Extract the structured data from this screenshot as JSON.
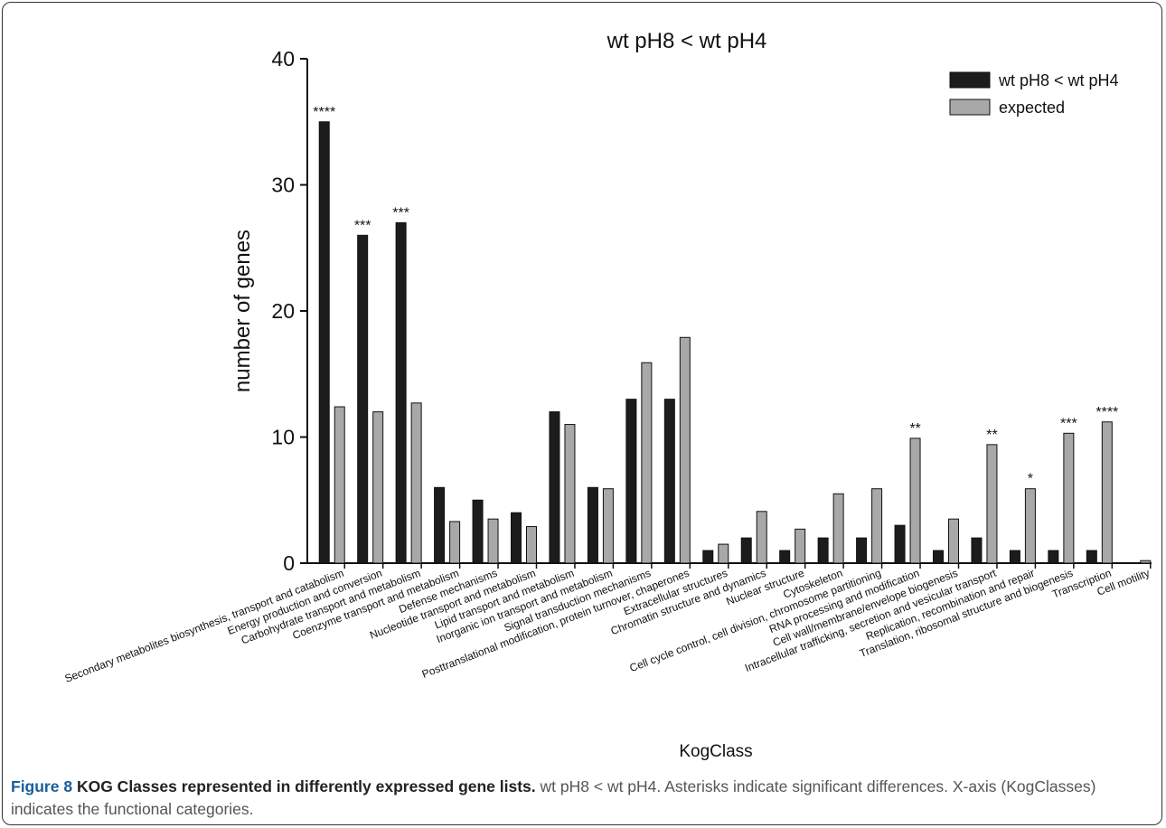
{
  "chart_data": {
    "type": "bar",
    "title": "wt pH8 < wt pH4",
    "xlabel": "KogClass",
    "ylabel": "number of genes",
    "ylim": [
      0,
      40
    ],
    "yticks": [
      "0",
      "10",
      "20",
      "30",
      "40"
    ],
    "legend_position": "top-right",
    "grid": false,
    "categories": [
      "Secondary metabolites biosynthesis, transport and catabolism",
      "Energy production and conversion",
      "Carbohydrate transport and metabolism",
      "Coenzyme transport and metabolism",
      "Defense mechanisms",
      "Nucleotide transport and metabolism",
      "Lipid transport and metabolism",
      "Inorganic ion transport and metabolism",
      "Signal transduction mechanisms",
      "Posttranslational modification, protein turnover, chaperones",
      "Extracellular structures",
      "Chromatin structure and dynamics",
      "Nuclear structure",
      "Cytoskeleton",
      "Cell cycle control, cell division, chromosome partitioning",
      "RNA processing and modification",
      "Cell wall/membrane/envelope biogenesis",
      "Intracellular trafficking, secretion and vesicular transport",
      "Replication, recombination and repair",
      "Translation, ribosomal structure and biogenesis",
      "Transcription",
      "Cell motility"
    ],
    "series": [
      {
        "name": "wt pH8 < wt pH4",
        "color": "#1c1c1c",
        "values": [
          35,
          26,
          27,
          6,
          5,
          4,
          12,
          6,
          13,
          13,
          1,
          2,
          1,
          2,
          2,
          3,
          1,
          2,
          1,
          1,
          1,
          0
        ]
      },
      {
        "name": "expected",
        "color": "#a8a8a8",
        "values": [
          12.4,
          12.0,
          12.7,
          3.3,
          3.5,
          2.9,
          11.0,
          5.9,
          15.9,
          17.9,
          1.5,
          4.1,
          2.7,
          5.5,
          5.9,
          9.9,
          3.5,
          9.4,
          5.9,
          10.3,
          11.2,
          0.2
        ]
      }
    ],
    "annotations": [
      "****",
      "***",
      "***",
      "",
      "",
      "",
      "",
      "",
      "",
      "",
      "",
      "",
      "",
      "",
      "",
      "**",
      "",
      "**",
      "*",
      "***",
      "****",
      ""
    ]
  },
  "caption": {
    "label": "Figure 8",
    "title": "KOG Classes represented in differently expressed gene lists.",
    "text": "wt pH8 < wt pH4. Asterisks indicate significant differences. X-axis (KogClasses) indicates the functional categories."
  }
}
